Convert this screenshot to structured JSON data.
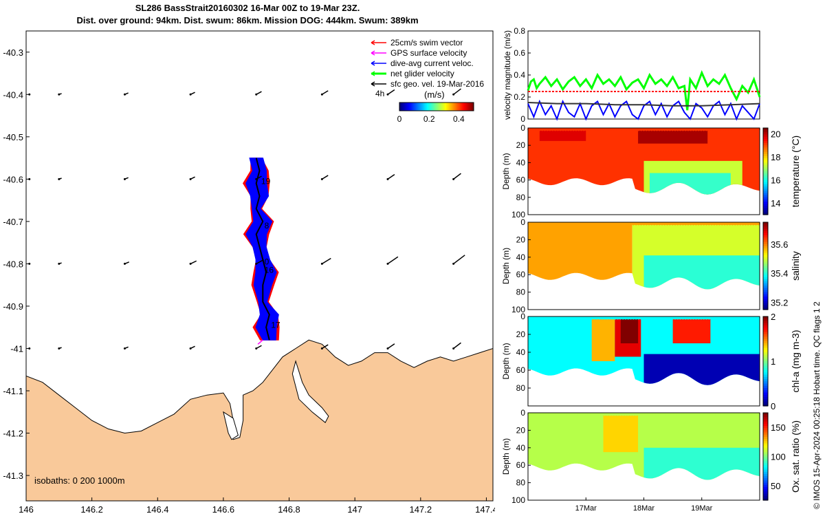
{
  "title": {
    "line1": "SL286 BassStrait20160302 16-Mar 00Z to 19-Mar 23Z.",
    "line2": "Dist. over ground: 94km. Dist. swum: 86km. Mission DOG: 444km. Swum: 389km"
  },
  "credit": "© IMOS 15-Apr-2024 00:25:18 Hobart time. QC flags 1  2",
  "colors": {
    "land": "#f9c99a",
    "swim": "#ff0000",
    "gps": "#ff00ff",
    "dive": "#0000ff",
    "net": "#00ff00",
    "geo": "#000000"
  },
  "chart_data": [
    {
      "type": "scatter",
      "name": "glider track map",
      "xlim": [
        146,
        147.42
      ],
      "ylim": [
        -41.36,
        -40.25
      ],
      "x_ticks": [
        "146",
        "146.2",
        "146.4",
        "146.6",
        "146.8",
        "147",
        "147.2",
        "147.4"
      ],
      "y_ticks": [
        "-40.3",
        "-40.4",
        "-40.5",
        "-40.6",
        "-40.7",
        "-40.8",
        "-40.9",
        "-41",
        "-41.1",
        "-41.2",
        "-41.3"
      ],
      "legend": {
        "entries": [
          "25cm/s swim vector",
          "GPS surface velocity",
          "dive-avg current veloc.",
          "net glider velocity",
          "sfc geo. vel. 19-Mar-2016"
        ],
        "colorbar_title": "(m/s)",
        "colorbar_label": "4h",
        "colorbar_ticks": [
          "0",
          "0.2",
          "0.4"
        ],
        "placement": "top-right"
      },
      "isobaths_note": "isobaths: 0   200  1000m",
      "track": [
        [
          146.74,
          -40.98
        ],
        [
          146.73,
          -40.95
        ],
        [
          146.74,
          -40.92
        ],
        [
          146.72,
          -40.89
        ],
        [
          146.72,
          -40.85
        ],
        [
          146.73,
          -40.82
        ],
        [
          146.72,
          -40.79
        ],
        [
          146.71,
          -40.76
        ],
        [
          146.7,
          -40.73
        ],
        [
          146.72,
          -40.7
        ],
        [
          146.7,
          -40.67
        ],
        [
          146.71,
          -40.64
        ],
        [
          146.7,
          -40.61
        ],
        [
          146.71,
          -40.58
        ],
        [
          146.7,
          -40.55
        ]
      ],
      "day_labels": [
        {
          "text": "19",
          "lon": 146.715,
          "lat": -40.605
        },
        {
          "text": "8",
          "lon": 146.725,
          "lat": -40.71
        },
        {
          "text": "0",
          "lon": 146.725,
          "lat": -40.795
        },
        {
          "text": "16",
          "lon": 146.725,
          "lat": -40.815
        },
        {
          "text": "17",
          "lon": 146.745,
          "lat": -40.945
        }
      ],
      "geo_vectors_grid": {
        "lons": [
          146.1,
          146.3,
          146.5,
          146.7,
          146.9,
          147.1,
          147.3
        ],
        "lats": [
          -40.4,
          -40.6,
          -40.8,
          -41.0
        ]
      }
    },
    {
      "type": "line",
      "name": "velocity",
      "ylabel": "velocity magnitude (m/s)",
      "ylim": [
        0,
        0.8
      ],
      "y_ticks": [
        "0",
        "0.2",
        "0.4",
        "0.6",
        "0.8"
      ],
      "xlim": [
        16.0,
        20.0
      ],
      "series": [
        {
          "color": "#00ff00",
          "x": [
            16.0,
            16.05,
            16.1,
            16.15,
            16.2,
            16.3,
            16.4,
            16.5,
            16.6,
            16.7,
            16.8,
            16.9,
            17.0,
            17.1,
            17.2,
            17.3,
            17.4,
            17.5,
            17.6,
            17.7,
            17.8,
            17.9,
            18.0,
            18.1,
            18.2,
            18.3,
            18.4,
            18.5,
            18.6,
            18.7,
            18.75,
            18.8,
            18.9,
            19.0,
            19.1,
            19.2,
            19.3,
            19.4,
            19.5,
            19.6,
            19.7,
            19.8,
            19.9,
            20.0
          ],
          "y": [
            0.26,
            0.34,
            0.36,
            0.28,
            0.32,
            0.38,
            0.3,
            0.36,
            0.27,
            0.34,
            0.38,
            0.3,
            0.36,
            0.28,
            0.4,
            0.32,
            0.36,
            0.3,
            0.38,
            0.27,
            0.33,
            0.36,
            0.28,
            0.4,
            0.32,
            0.36,
            0.3,
            0.38,
            0.28,
            0.3,
            0.08,
            0.36,
            0.28,
            0.42,
            0.3,
            0.36,
            0.32,
            0.4,
            0.28,
            0.18,
            0.3,
            0.24,
            0.36,
            0.2
          ]
        },
        {
          "color": "#ff0000",
          "dashed": true,
          "x": [
            16.0,
            20.0
          ],
          "y": [
            0.25,
            0.25
          ]
        },
        {
          "color": "#0000ff",
          "x": [
            16.0,
            16.1,
            16.2,
            16.3,
            16.4,
            16.5,
            16.6,
            16.7,
            16.8,
            16.9,
            17.0,
            17.1,
            17.2,
            17.3,
            17.4,
            17.5,
            17.6,
            17.7,
            17.8,
            17.9,
            18.0,
            18.1,
            18.2,
            18.3,
            18.4,
            18.5,
            18.6,
            18.7,
            18.8,
            18.9,
            19.0,
            19.1,
            19.2,
            19.3,
            19.4,
            19.5,
            19.6,
            19.7,
            19.8,
            19.9,
            20.0
          ],
          "y": [
            0.14,
            0.02,
            0.16,
            0.04,
            0.12,
            0.0,
            0.16,
            0.06,
            0.02,
            0.14,
            0.0,
            0.12,
            0.16,
            0.04,
            0.14,
            0.02,
            0.12,
            0.16,
            0.04,
            0.0,
            0.12,
            0.16,
            0.04,
            0.14,
            0.02,
            0.12,
            0.16,
            0.06,
            0.0,
            0.14,
            0.1,
            0.02,
            0.12,
            0.16,
            0.04,
            0.14,
            0.0,
            0.12,
            0.06,
            0.0,
            0.14
          ]
        },
        {
          "color": "#333333",
          "x": [
            16.0,
            16.5,
            17.0,
            17.5,
            18.0,
            18.5,
            19.0,
            19.5,
            20.0
          ],
          "y": [
            0.15,
            0.14,
            0.14,
            0.13,
            0.13,
            0.12,
            0.12,
            0.13,
            0.14
          ]
        }
      ]
    },
    {
      "type": "heatmap",
      "name": "temperature",
      "ylabel": "Depth (m)",
      "clabel": "temperature (°C)",
      "ylim": [
        0,
        100
      ],
      "y_ticks": [
        "20",
        "40",
        "60",
        "80",
        "100"
      ],
      "clim": [
        13,
        20.5
      ],
      "c_ticks": [
        "14",
        "16",
        "18",
        "20"
      ],
      "regions": [
        {
          "x0": 16.0,
          "x1": 20.0,
          "d0": 0,
          "d1": 90,
          "value": 19.2
        },
        {
          "x0": 16.2,
          "x1": 17.0,
          "d0": 0,
          "d1": 15,
          "value": 19.8
        },
        {
          "x0": 17.9,
          "x1": 19.1,
          "d0": 0,
          "d1": 18,
          "value": 20.2
        },
        {
          "x0": 18.0,
          "x1": 19.7,
          "d0": 38,
          "d1": 90,
          "value": 17.3
        },
        {
          "x0": 18.1,
          "x1": 19.5,
          "d0": 52,
          "d1": 90,
          "value": 16.2
        }
      ]
    },
    {
      "type": "heatmap",
      "name": "salinity",
      "ylabel": "Depth (m)",
      "clabel": "salinity",
      "ylim": [
        0,
        100
      ],
      "y_ticks": [
        "20",
        "40",
        "60",
        "80",
        "100"
      ],
      "clim": [
        35.15,
        35.75
      ],
      "c_ticks": [
        "35.2",
        "35.4",
        "35.6"
      ],
      "regions": [
        {
          "x0": 16.0,
          "x1": 17.8,
          "d0": 0,
          "d1": 90,
          "value": 35.58
        },
        {
          "x0": 17.8,
          "x1": 20.0,
          "d0": 0,
          "d1": 90,
          "value": 35.5
        },
        {
          "x0": 18.0,
          "x1": 20.0,
          "d0": 38,
          "d1": 90,
          "value": 35.4
        }
      ]
    },
    {
      "type": "heatmap",
      "name": "chl-a",
      "ylabel": "Depth (m)",
      "clabel": "chl-a (mg m-3)",
      "ylim": [
        0,
        100
      ],
      "y_ticks": [
        "20",
        "40",
        "60",
        "80"
      ],
      "clim": [
        0,
        2
      ],
      "c_ticks": [
        "0",
        "1",
        "2"
      ],
      "regions": [
        {
          "x0": 16.0,
          "x1": 20.0,
          "d0": 0,
          "d1": 90,
          "value": 0.75
        },
        {
          "x0": 17.1,
          "x1": 17.5,
          "d0": 0,
          "d1": 50,
          "value": 1.4
        },
        {
          "x0": 17.5,
          "x1": 17.95,
          "d0": 0,
          "d1": 45,
          "value": 1.8
        },
        {
          "x0": 17.6,
          "x1": 17.9,
          "d0": 0,
          "d1": 30,
          "value": 2.0
        },
        {
          "x0": 18.5,
          "x1": 19.15,
          "d0": 0,
          "d1": 30,
          "value": 1.7
        },
        {
          "x0": 18.0,
          "x1": 20.0,
          "d0": 42,
          "d1": 90,
          "value": 0.1
        }
      ]
    },
    {
      "type": "heatmap",
      "name": "oxygen saturation",
      "ylabel": "Depth (m)",
      "clabel": "Ox. sat. ratio (%)",
      "ylim": [
        0,
        100
      ],
      "y_ticks": [
        "20",
        "40",
        "60",
        "80",
        "100"
      ],
      "clim": [
        25,
        175
      ],
      "c_ticks": [
        "50",
        "100",
        "150"
      ],
      "x_ticks": [
        "17Mar",
        "18Mar",
        "19Mar"
      ],
      "regions": [
        {
          "x0": 16.0,
          "x1": 20.0,
          "d0": 0,
          "d1": 90,
          "value": 108
        },
        {
          "x0": 17.3,
          "x1": 17.9,
          "d0": 0,
          "d1": 45,
          "value": 125
        },
        {
          "x0": 18.0,
          "x1": 20.0,
          "d0": 40,
          "d1": 90,
          "value": 88
        }
      ]
    }
  ]
}
